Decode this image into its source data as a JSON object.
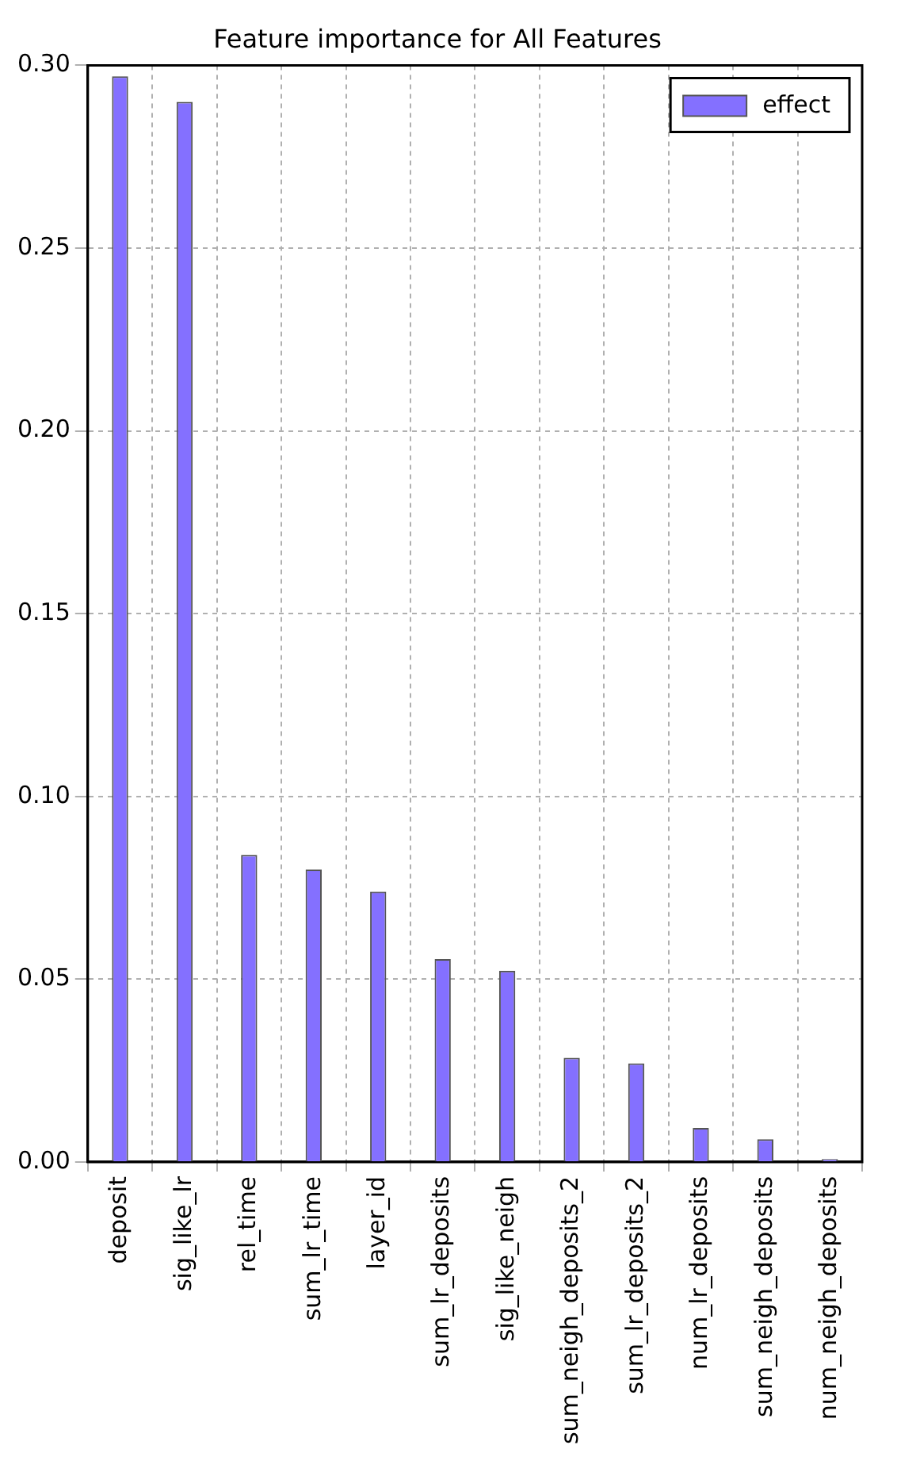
{
  "chart_data": {
    "type": "bar",
    "title": "Feature importance for All Features",
    "categories": [
      "deposit",
      "sig_like_lr",
      "rel_time",
      "sum_lr_time",
      "layer_id",
      "sum_lr_deposits",
      "sig_like_neigh",
      "sum_neigh_deposits_2",
      "sum_lr_deposits_2",
      "num_lr_deposits",
      "sum_neigh_deposits",
      "num_neigh_deposits"
    ],
    "series": [
      {
        "name": "effect",
        "color": "#8470ff",
        "values": [
          0.297,
          0.29,
          0.084,
          0.08,
          0.074,
          0.0555,
          0.0523,
          0.0285,
          0.027,
          0.0093,
          0.0062,
          0.0008
        ]
      }
    ],
    "ylim": [
      0,
      0.3
    ],
    "yticks": [
      {
        "value": 0,
        "label": "0.00"
      },
      {
        "value": 0.05,
        "label": "0.05"
      },
      {
        "value": 0.1,
        "label": "0.10"
      },
      {
        "value": 0.15,
        "label": "0.15"
      },
      {
        "value": 0.2,
        "label": "0.20"
      },
      {
        "value": 0.25,
        "label": "0.25"
      },
      {
        "value": 0.3,
        "label": "0.30"
      }
    ],
    "grid": true,
    "legend": "top right"
  }
}
